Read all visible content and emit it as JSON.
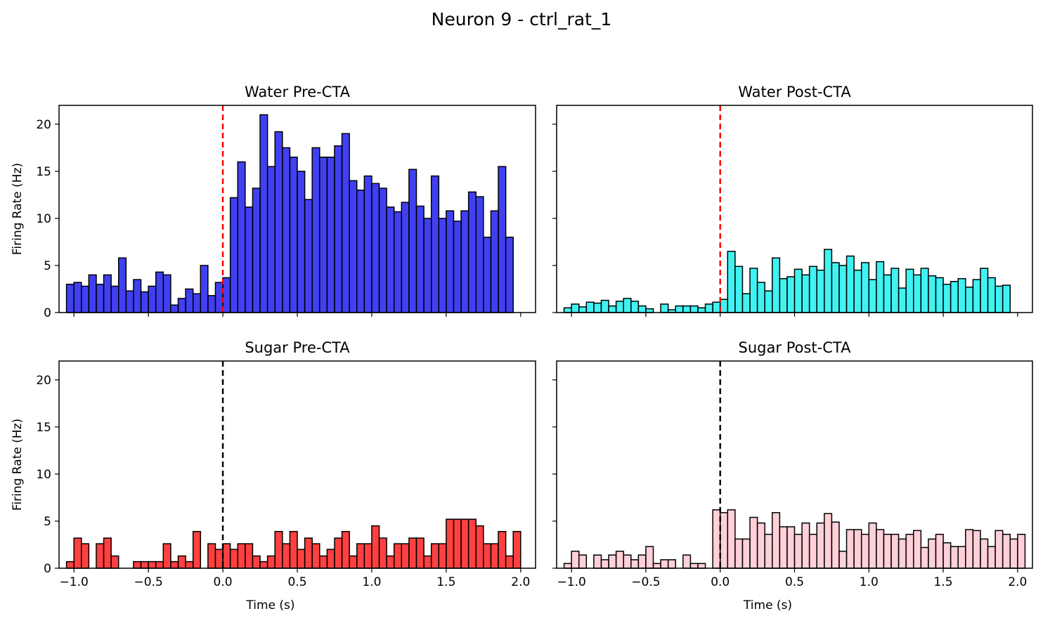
{
  "figure": {
    "suptitle": "Neuron 9 - ctrl_rat_1"
  },
  "chart_data": [
    {
      "type": "bar",
      "title": "Water Pre-CTA",
      "xlabel": "",
      "ylabel": "Firing Rate (Hz)",
      "xlim": [
        -1.1,
        2.1
      ],
      "ylim": [
        0,
        22
      ],
      "bin_width": 0.05,
      "bin_start": -1.05,
      "color": "#0000ee",
      "vline": {
        "x": 0,
        "color": "#ff0000"
      },
      "values": [
        3.0,
        3.2,
        2.8,
        4.0,
        3.0,
        4.0,
        2.8,
        5.8,
        2.3,
        3.5,
        2.2,
        2.8,
        4.3,
        4.0,
        0.8,
        1.5,
        2.5,
        2.0,
        5.0,
        1.8,
        3.2,
        3.7,
        12.2,
        16.0,
        11.2,
        13.2,
        21.0,
        15.5,
        19.2,
        17.5,
        16.5,
        15.0,
        12.0,
        17.5,
        16.5,
        16.5,
        17.7,
        19.0,
        14.0,
        13.0,
        14.5,
        13.7,
        13.2,
        11.2,
        10.7,
        11.7,
        15.2,
        11.3,
        10.0,
        14.5,
        10.0,
        10.8,
        9.7,
        10.8,
        12.8,
        12.3,
        8.0,
        10.8,
        15.5,
        8.0
      ]
    },
    {
      "type": "bar",
      "title": "Water Post-CTA",
      "xlabel": "",
      "ylabel": "",
      "xlim": [
        -1.1,
        2.1
      ],
      "ylim": [
        0,
        22
      ],
      "bin_width": 0.05,
      "bin_start": -1.05,
      "color": "#00eeee",
      "vline": {
        "x": 0,
        "color": "#ff0000"
      },
      "values": [
        0.5,
        0.9,
        0.6,
        1.1,
        1.0,
        1.3,
        0.7,
        1.2,
        1.5,
        1.2,
        0.7,
        0.4,
        0.0,
        0.9,
        0.3,
        0.7,
        0.7,
        0.7,
        0.5,
        0.9,
        1.1,
        1.4,
        6.5,
        4.9,
        2.0,
        4.7,
        3.2,
        2.3,
        5.8,
        3.6,
        3.8,
        4.6,
        4.0,
        4.9,
        4.5,
        6.7,
        5.3,
        5.0,
        6.0,
        4.5,
        5.3,
        3.5,
        5.4,
        4.0,
        4.7,
        2.6,
        4.6,
        4.0,
        4.7,
        3.9,
        3.7,
        3.0,
        3.3,
        3.6,
        2.7,
        3.5,
        4.7,
        3.7,
        2.8,
        2.9
      ]
    },
    {
      "type": "bar",
      "title": "Sugar Pre-CTA",
      "xlabel": "Time (s)",
      "ylabel": "Firing Rate (Hz)",
      "xlim": [
        -1.1,
        2.1
      ],
      "ylim": [
        0,
        22
      ],
      "bin_width": 0.05,
      "bin_start": -1.05,
      "color": "#ff0000",
      "vline": {
        "x": 0,
        "color": "#000000"
      },
      "values": [
        0.7,
        3.2,
        2.6,
        0.0,
        2.6,
        3.2,
        1.3,
        0.0,
        0.0,
        0.7,
        0.7,
        0.7,
        0.7,
        2.6,
        0.7,
        1.3,
        0.7,
        3.9,
        0.0,
        2.6,
        2.0,
        2.6,
        2.0,
        2.6,
        2.6,
        1.3,
        0.7,
        1.3,
        3.9,
        2.6,
        3.9,
        2.0,
        3.2,
        2.6,
        1.3,
        2.0,
        3.2,
        3.9,
        1.3,
        2.6,
        2.6,
        4.5,
        3.2,
        1.3,
        2.6,
        2.6,
        3.2,
        3.2,
        1.3,
        2.6,
        2.6,
        5.2,
        5.2,
        5.2,
        5.2,
        4.5,
        2.6,
        2.6,
        3.9,
        1.3,
        3.9
      ]
    },
    {
      "type": "bar",
      "title": "Sugar Post-CTA",
      "xlabel": "Time (s)",
      "ylabel": "",
      "xlim": [
        -1.1,
        2.1
      ],
      "ylim": [
        0,
        22
      ],
      "bin_width": 0.05,
      "bin_start": -1.05,
      "color": "#ffc0cb",
      "vline": {
        "x": 0,
        "color": "#000000"
      },
      "values": [
        0.5,
        1.8,
        1.4,
        0.0,
        1.4,
        0.9,
        1.4,
        1.8,
        1.4,
        0.9,
        1.4,
        2.3,
        0.5,
        0.9,
        0.9,
        0.0,
        1.4,
        0.5,
        0.5,
        0.0,
        6.2,
        5.9,
        6.2,
        3.1,
        3.1,
        5.4,
        4.8,
        3.6,
        5.9,
        4.4,
        4.4,
        3.6,
        4.8,
        3.6,
        4.8,
        5.8,
        4.9,
        1.8,
        4.1,
        4.1,
        3.6,
        4.8,
        4.1,
        3.6,
        3.6,
        3.1,
        3.6,
        4.0,
        2.2,
        3.1,
        3.6,
        2.7,
        2.3,
        2.3,
        4.1,
        4.0,
        3.1,
        2.3,
        4.0,
        3.6,
        3.1,
        3.6
      ]
    }
  ],
  "axes": {
    "x_ticks": [
      -1.0,
      -0.5,
      0.0,
      0.5,
      1.0,
      1.5,
      2.0
    ],
    "x_tick_labels": [
      "−1.0",
      "−0.5",
      "0.0",
      "0.5",
      "1.0",
      "1.5",
      "2.0"
    ],
    "y_ticks": [
      0,
      5,
      10,
      15,
      20
    ],
    "y_tick_labels": [
      "0",
      "5",
      "10",
      "15",
      "20"
    ]
  }
}
